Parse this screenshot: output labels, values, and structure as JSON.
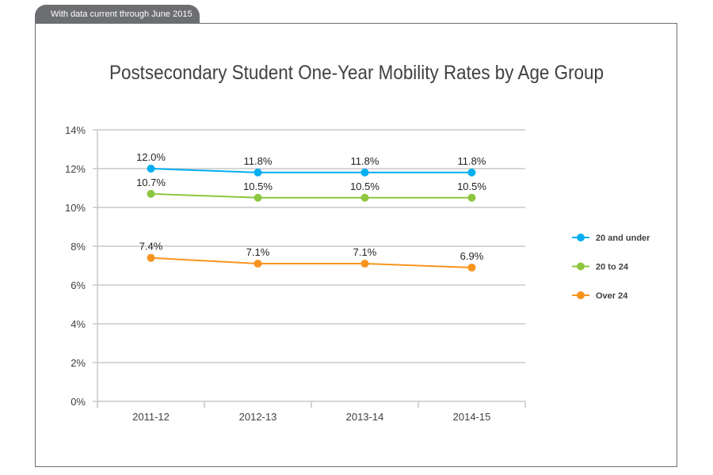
{
  "header": {
    "tab_label": "With data current through June 2015"
  },
  "chart_data": {
    "type": "line",
    "title": "Postsecondary Student One-Year Mobility Rates by Age Group",
    "xlabel": "",
    "ylabel": "",
    "categories": [
      "2011-12",
      "2012-13",
      "2013-14",
      "2014-15"
    ],
    "ylim": [
      0,
      14
    ],
    "yticks": [
      "0%",
      "2%",
      "4%",
      "6%",
      "8%",
      "10%",
      "12%",
      "14%"
    ],
    "grid": true,
    "legend_position": "right",
    "series": [
      {
        "name": "20 and under",
        "color": "#00aeef",
        "values": [
          12.0,
          11.8,
          11.8,
          11.8
        ],
        "labels": [
          "12.0%",
          "11.8%",
          "11.8%",
          "11.8%"
        ]
      },
      {
        "name": "20 to 24",
        "color": "#8dc63f",
        "values": [
          10.7,
          10.5,
          10.5,
          10.5
        ],
        "labels": [
          "10.7%",
          "10.5%",
          "10.5%",
          "10.5%"
        ]
      },
      {
        "name": "Over 24",
        "color": "#f7941d",
        "values": [
          7.4,
          7.1,
          7.1,
          6.9
        ],
        "labels": [
          "7.4%",
          "7.1%",
          "7.1%",
          "6.9%"
        ]
      }
    ]
  }
}
